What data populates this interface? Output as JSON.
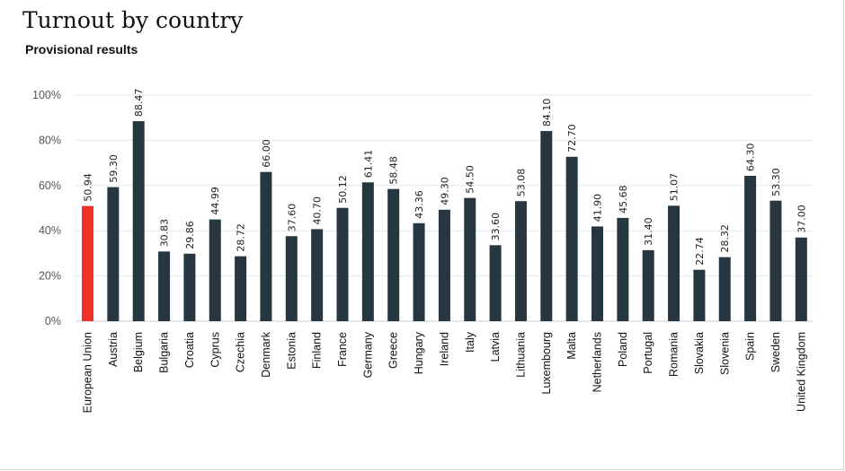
{
  "chart_data": {
    "type": "bar",
    "title": "Turnout by country",
    "subtitle": "Provisional results",
    "xlabel": "",
    "ylabel": "",
    "ylim": [
      0,
      100
    ],
    "yticks": [
      0,
      20,
      40,
      60,
      80,
      100
    ],
    "ytick_labels": [
      "0%",
      "20%",
      "40%",
      "60%",
      "80%",
      "100%"
    ],
    "grid": true,
    "legend": "none",
    "colors": {
      "default_bar": "#263741",
      "highlight_bar": "#f0312b",
      "grid": "#e3e7ea",
      "axis": "#c9cdd0"
    },
    "highlight_category": "European Union",
    "categories": [
      "European Union",
      "Austria",
      "Belgium",
      "Bulgaria",
      "Croatia",
      "Cyprus",
      "Czechia",
      "Denmark",
      "Estonia",
      "Finland",
      "France",
      "Germany",
      "Greece",
      "Hungary",
      "Ireland",
      "Italy",
      "Latvia",
      "Lithuania",
      "Luxembourg",
      "Malta",
      "Netherlands",
      "Poland",
      "Portugal",
      "Romania",
      "Slovakia",
      "Slovenia",
      "Spain",
      "Sweden",
      "United Kingdom"
    ],
    "values": [
      50.94,
      59.3,
      88.47,
      30.83,
      29.86,
      44.99,
      28.72,
      66.0,
      37.6,
      40.7,
      50.12,
      61.41,
      58.48,
      43.36,
      49.3,
      54.5,
      33.6,
      53.08,
      84.1,
      72.7,
      41.9,
      45.68,
      31.4,
      51.07,
      22.74,
      28.32,
      64.3,
      53.3,
      37.0
    ],
    "value_labels": [
      "50.94",
      "59.30",
      "88.47",
      "30.83",
      "29.86",
      "44.99",
      "28.72",
      "66.00",
      "37.60",
      "40.70",
      "50.12",
      "61.41",
      "58.48",
      "43.36",
      "49.30",
      "54.50",
      "33.60",
      "53.08",
      "84.10",
      "72.70",
      "41.90",
      "45.68",
      "31.40",
      "51.07",
      "22.74",
      "28.32",
      "64.30",
      "53.30",
      "37.00"
    ]
  }
}
